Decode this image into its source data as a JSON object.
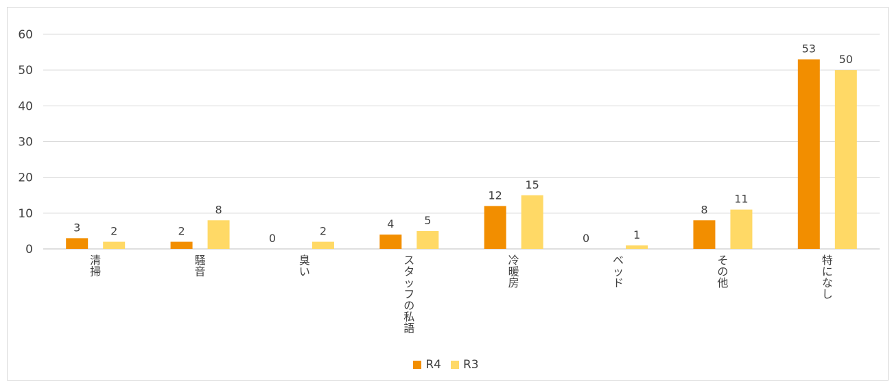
{
  "chart_data": {
    "type": "bar",
    "categories": [
      "清掃",
      "騒音",
      "臭い",
      "スタッフの私語",
      "冷暖房",
      "ベッド",
      "その他",
      "特になし"
    ],
    "series": [
      {
        "name": "R4",
        "values": [
          3,
          2,
          0,
          4,
          12,
          0,
          8,
          53
        ]
      },
      {
        "name": "R3",
        "values": [
          2,
          8,
          2,
          5,
          15,
          1,
          11,
          50
        ]
      }
    ],
    "ylim": [
      0,
      60
    ],
    "yticks": [
      0,
      10,
      20,
      30,
      40,
      50,
      60
    ],
    "grid": true,
    "legend_position": "bottom",
    "data_labels": true
  },
  "colors": {
    "series": [
      "#f28e00",
      "#ffd966"
    ],
    "grid": "#d9d9d9",
    "axis": "#bfbfbf"
  }
}
